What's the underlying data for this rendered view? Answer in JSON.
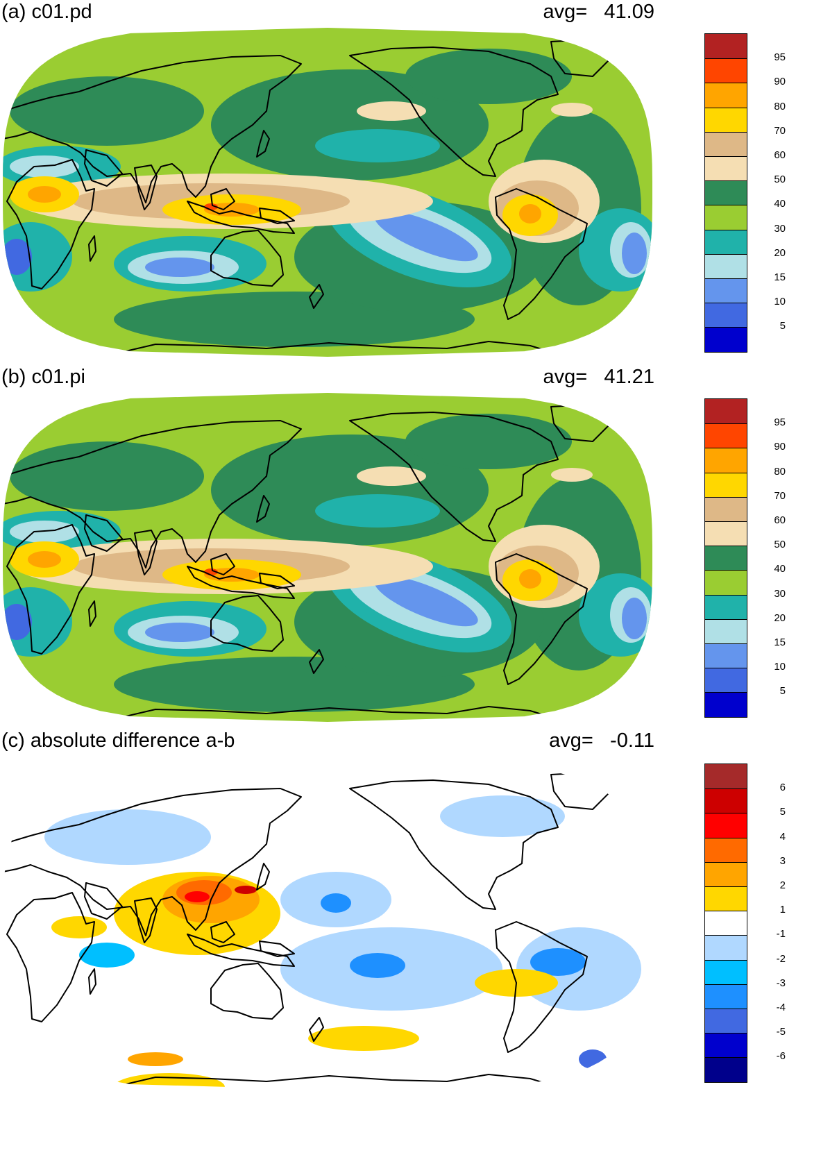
{
  "panels": [
    {
      "id": "a",
      "title": "(a) c01.pd",
      "avg_label": "avg=",
      "avg_value": "41.09",
      "scale": "main",
      "colorbar_labels": [
        "95",
        "90",
        "80",
        "70",
        "60",
        "50",
        "40",
        "30",
        "20",
        "15",
        "10",
        "5"
      ],
      "colorbar_colors": [
        "#b22222",
        "#ff4500",
        "#ffa500",
        "#ffd700",
        "#deb887",
        "#f5deb3",
        "#2e8b57",
        "#9acd32",
        "#20b2aa",
        "#b0e0e6",
        "#6495ed",
        "#4169e1",
        "#0000cd"
      ]
    },
    {
      "id": "b",
      "title": "(b) c01.pi",
      "avg_label": "avg=",
      "avg_value": "41.21",
      "scale": "main",
      "colorbar_labels": [
        "95",
        "90",
        "80",
        "70",
        "60",
        "50",
        "40",
        "30",
        "20",
        "15",
        "10",
        "5"
      ],
      "colorbar_colors": [
        "#b22222",
        "#ff4500",
        "#ffa500",
        "#ffd700",
        "#deb887",
        "#f5deb3",
        "#2e8b57",
        "#9acd32",
        "#20b2aa",
        "#b0e0e6",
        "#6495ed",
        "#4169e1",
        "#0000cd"
      ]
    },
    {
      "id": "c",
      "title": "(c) absolute difference a-b",
      "avg_label": "avg=",
      "avg_value": "-0.11",
      "scale": "diff",
      "colorbar_labels": [
        "6",
        "5",
        "4",
        "3",
        "2",
        "1",
        "-1",
        "-2",
        "-3",
        "-4",
        "-5",
        "-6"
      ],
      "colorbar_colors": [
        "#a52a2a",
        "#cd0000",
        "#ff0000",
        "#ff6a00",
        "#ffa500",
        "#ffd700",
        "#ffffff",
        "#b0d8ff",
        "#00bfff",
        "#1e90ff",
        "#4169e1",
        "#0000cd",
        "#00008b"
      ]
    }
  ],
  "colors": {
    "coastline": "#000000",
    "map_background_main": "#9acd32",
    "map_background_diff": "#ffffff"
  }
}
